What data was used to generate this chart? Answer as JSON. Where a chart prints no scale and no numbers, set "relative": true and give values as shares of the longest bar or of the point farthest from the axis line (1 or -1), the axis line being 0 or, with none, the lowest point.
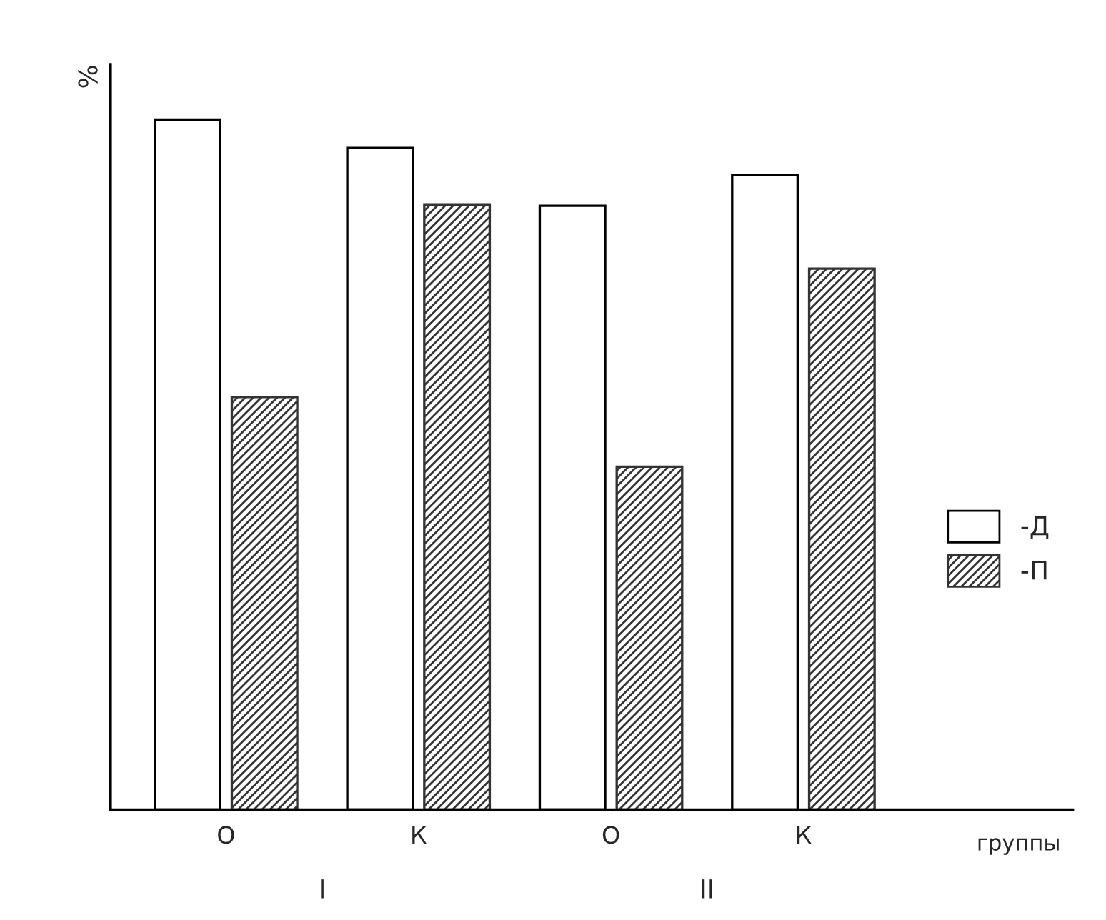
{
  "chart_data": {
    "type": "bar",
    "relative": true,
    "ylabel": "%",
    "xlabel": "группы",
    "categories": [
      "О",
      "К",
      "О",
      "К"
    ],
    "series": [
      {
        "name": "-Д",
        "color": "#ffffff",
        "values": [
          1,
          0.959,
          0.875,
          0.92
        ]
      },
      {
        "name": "-П",
        "color": "#333333",
        "values": [
          0.598,
          0.877,
          0.497,
          0.784
        ]
      }
    ],
    "annotations": [
      "I",
      "II"
    ],
    "legend": "right",
    "grid": false
  }
}
